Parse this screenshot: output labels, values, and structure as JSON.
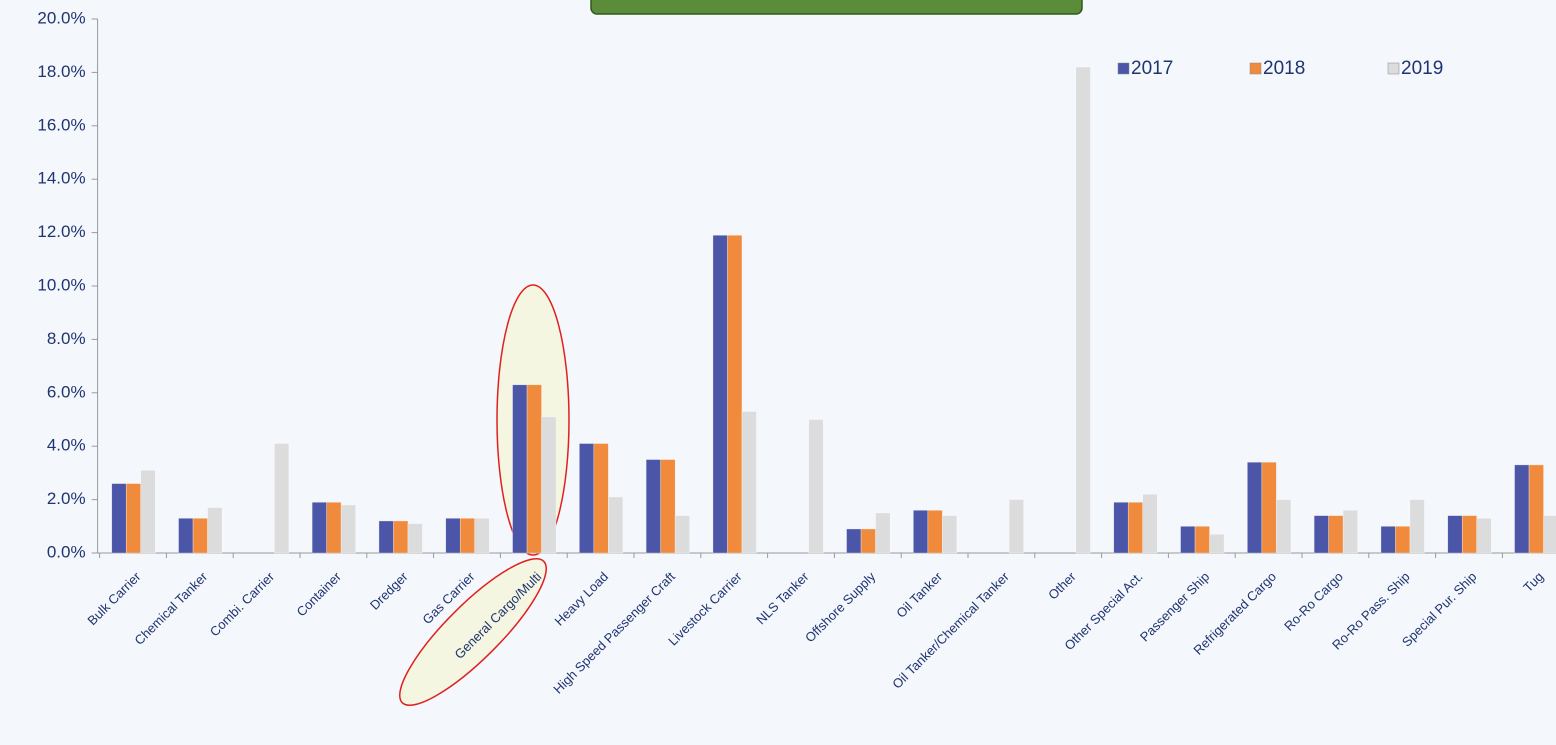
{
  "chart_data": {
    "type": "bar",
    "categories": [
      "Bulk Carrier",
      "Chemical Tanker",
      "Combi. Carrier",
      "Container",
      "Dredger",
      "Gas Carrier",
      "General Cargo/Multi",
      "Heavy Load",
      "High Speed Passenger Craft",
      "Livestock Carrier",
      "NLS Tanker",
      "Offshore Supply",
      "Oil Tanker",
      "Oil Tanker/Chemical Tanker",
      "Other",
      "Other Special Act.",
      "Passenger Ship",
      "Refrigerated Cargo",
      "Ro-Ro Cargo",
      "Ro-Ro Pass. Ship",
      "Special Pur. Ship",
      "Tug"
    ],
    "series": [
      {
        "name": "2017",
        "color": "#4b56a8",
        "values": [
          2.6,
          1.3,
          0,
          1.9,
          1.2,
          1.3,
          6.3,
          4.1,
          3.5,
          11.9,
          0,
          0.9,
          1.6,
          0,
          0,
          1.9,
          1.0,
          3.4,
          1.4,
          1.0,
          1.4,
          3.3
        ]
      },
      {
        "name": "2018",
        "color": "#f08a3c",
        "values": [
          2.6,
          1.3,
          0,
          1.9,
          1.2,
          1.3,
          6.3,
          4.1,
          3.5,
          11.9,
          0,
          0.9,
          1.6,
          0,
          0,
          1.9,
          1.0,
          3.4,
          1.4,
          1.0,
          1.4,
          3.3
        ]
      },
      {
        "name": "2019",
        "color": "#dcdcdc",
        "values": [
          3.1,
          1.7,
          4.1,
          1.8,
          1.1,
          1.3,
          5.1,
          2.1,
          1.4,
          5.3,
          5.0,
          1.5,
          1.4,
          2.0,
          18.2,
          2.2,
          0.7,
          2.0,
          1.6,
          2.0,
          1.3,
          1.4
        ]
      }
    ],
    "ylim": [
      0,
      20
    ],
    "yticks": [
      {
        "value": 0,
        "label": "0.0%"
      },
      {
        "value": 2,
        "label": "2.0%"
      },
      {
        "value": 4,
        "label": "4.0%"
      },
      {
        "value": 6,
        "label": "6.0%"
      },
      {
        "value": 8,
        "label": "8.0%"
      },
      {
        "value": 10,
        "label": "10.0%"
      },
      {
        "value": 12,
        "label": "12.0%"
      },
      {
        "value": 14,
        "label": "14.0%"
      },
      {
        "value": 16,
        "label": "16.0%"
      },
      {
        "value": 18,
        "label": "18.0%"
      },
      {
        "value": 20,
        "label": "20.0%"
      }
    ],
    "legend": "top-right"
  }
}
